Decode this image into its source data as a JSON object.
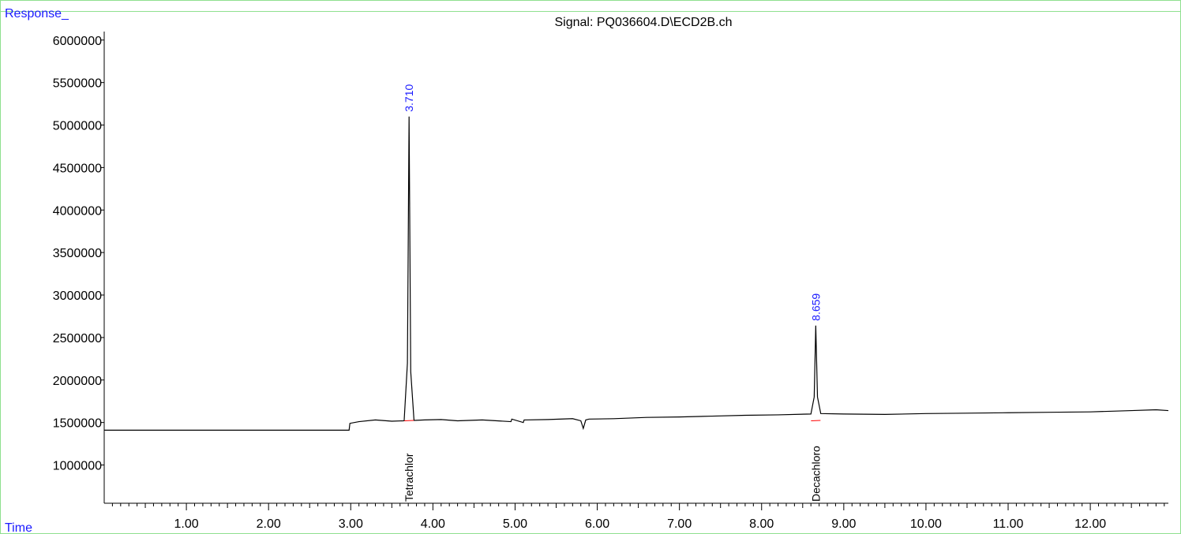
{
  "chart_data": {
    "type": "line",
    "title": "Signal: PQ036604.D\\ECD2B.ch",
    "ylabel": "Response_",
    "xlabel": "Time",
    "xlim": [
      0,
      12.95
    ],
    "ylim": [
      550000,
      6100000
    ],
    "yticks": [
      1000000,
      1500000,
      2000000,
      2500000,
      3000000,
      3500000,
      4000000,
      4500000,
      5000000,
      5500000,
      6000000
    ],
    "ytick_labels": [
      "1000000",
      "1500000",
      "2000000",
      "2500000",
      "3000000",
      "3500000",
      "4000000",
      "4500000",
      "5000000",
      "5500000",
      "6000000"
    ],
    "xticks": [
      1,
      2,
      3,
      4,
      5,
      6,
      7,
      8,
      9,
      10,
      11,
      12
    ],
    "xtick_labels": [
      "1.00",
      "2.00",
      "3.00",
      "4.00",
      "5.00",
      "6.00",
      "7.00",
      "8.00",
      "9.00",
      "10.00",
      "11.00",
      "12.00"
    ],
    "series": [
      {
        "color": "#000000",
        "x": [
          0.0,
          2.98,
          2.99,
          3.1,
          3.3,
          3.5,
          3.65,
          3.69,
          3.71,
          3.73,
          3.77,
          3.9,
          4.1,
          4.3,
          4.6,
          4.95,
          4.96,
          5.1,
          5.11,
          5.4,
          5.7,
          5.8,
          5.83,
          5.86,
          5.9,
          6.2,
          6.6,
          7.0,
          7.4,
          7.8,
          8.2,
          8.6,
          8.64,
          8.659,
          8.68,
          8.72,
          9.0,
          9.5,
          10.0,
          10.5,
          11.0,
          11.5,
          12.0,
          12.5,
          12.8,
          12.95
        ],
        "y": [
          1410000,
          1410000,
          1490000,
          1510000,
          1530000,
          1515000,
          1520000,
          2200000,
          5100000,
          2100000,
          1525000,
          1530000,
          1535000,
          1520000,
          1530000,
          1510000,
          1540000,
          1500000,
          1530000,
          1535000,
          1545000,
          1520000,
          1430000,
          1530000,
          1540000,
          1545000,
          1560000,
          1565000,
          1575000,
          1585000,
          1590000,
          1600000,
          1800000,
          2640000,
          1800000,
          1605000,
          1600000,
          1595000,
          1605000,
          1610000,
          1615000,
          1620000,
          1625000,
          1640000,
          1650000,
          1640000
        ]
      }
    ],
    "peaks": [
      {
        "rt": 3.71,
        "height": 5100000,
        "rt_label": "3.710",
        "compound": "Tetrachlor"
      },
      {
        "rt": 8.659,
        "height": 2640000,
        "rt_label": "8.659",
        "compound": "Decachloro"
      }
    ],
    "colors": {
      "line": "#000000",
      "axis_title": "#1a1aff",
      "rt_label": "#1a1aff",
      "frame": "#8fe08f",
      "baseline_mark": "#ff0000"
    }
  }
}
